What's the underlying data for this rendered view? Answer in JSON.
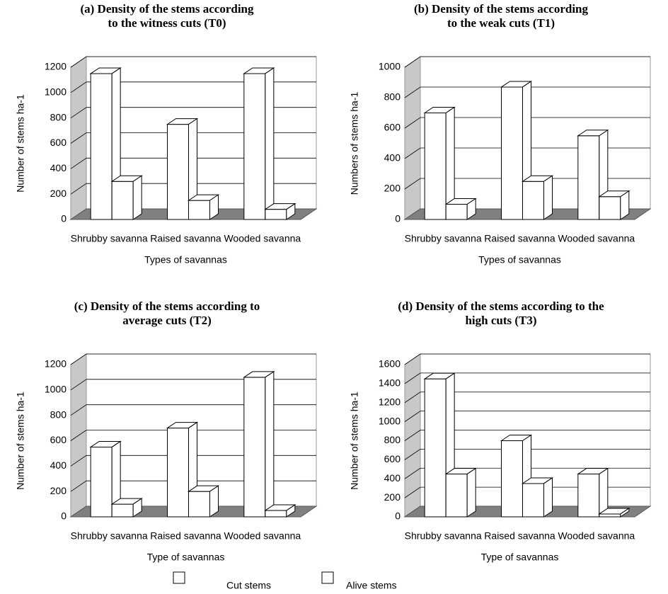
{
  "chart_data": [
    {
      "type": "bar",
      "title": [
        "(a) Density of the stems according",
        "to the witness cuts (T0)"
      ],
      "categories": [
        "Shrubby savanna",
        "Raised savanna",
        "Wooded savanna"
      ],
      "series": [
        {
          "values": [
            1150,
            750,
            1150
          ]
        },
        {
          "values": [
            300,
            150,
            80
          ]
        }
      ],
      "ylim": [
        0,
        1200
      ],
      "yticks": [
        0,
        200,
        400,
        600,
        800,
        1000,
        1200
      ],
      "xlabel": "Types of savannas",
      "ylabel": "Number of stems ha-1"
    },
    {
      "type": "bar",
      "title": [
        "(b) Density of the stems according",
        "to the weak cuts (T1)"
      ],
      "categories": [
        "Shrubby savanna",
        "Raised savanna",
        "Wooded savanna"
      ],
      "series": [
        {
          "values": [
            700,
            870,
            550
          ]
        },
        {
          "values": [
            100,
            250,
            150
          ]
        }
      ],
      "ylim": [
        0,
        1000
      ],
      "yticks": [
        0,
        200,
        400,
        600,
        800,
        1000
      ],
      "xlabel": "Types of savannas",
      "ylabel": "Numbers of stems ha-1"
    },
    {
      "type": "bar",
      "title": [
        "(c) Density of the stems according to",
        "average cuts (T2)"
      ],
      "categories": [
        "Shrubby savanna",
        "Raised savanna",
        "Wooded savanna"
      ],
      "series": [
        {
          "values": [
            550,
            700,
            1100
          ]
        },
        {
          "values": [
            100,
            200,
            50
          ]
        }
      ],
      "ylim": [
        0,
        1200
      ],
      "yticks": [
        0,
        200,
        400,
        600,
        800,
        1000,
        1200
      ],
      "xlabel": "Type of savannas",
      "ylabel": "Number of stems ha-1"
    },
    {
      "type": "bar",
      "title": [
        "(d) Density of the stems according to the",
        "high cuts (T3)"
      ],
      "categories": [
        "Shrubby savanna",
        "Raised savanna",
        "Wooded savanna"
      ],
      "series": [
        {
          "values": [
            1450,
            800,
            450
          ]
        },
        {
          "values": [
            450,
            350,
            30
          ]
        }
      ],
      "ylim": [
        0,
        1600
      ],
      "yticks": [
        0,
        200,
        400,
        600,
        800,
        1000,
        1200,
        1400,
        1600
      ],
      "xlabel": "Type of savannas",
      "ylabel": "Number of stems ha-1"
    }
  ],
  "legend": [
    "Cut stems",
    "Alive stems"
  ],
  "bar_color": "#ffffff",
  "floor_color": "#808080",
  "wall_color": "#c8c8c8"
}
